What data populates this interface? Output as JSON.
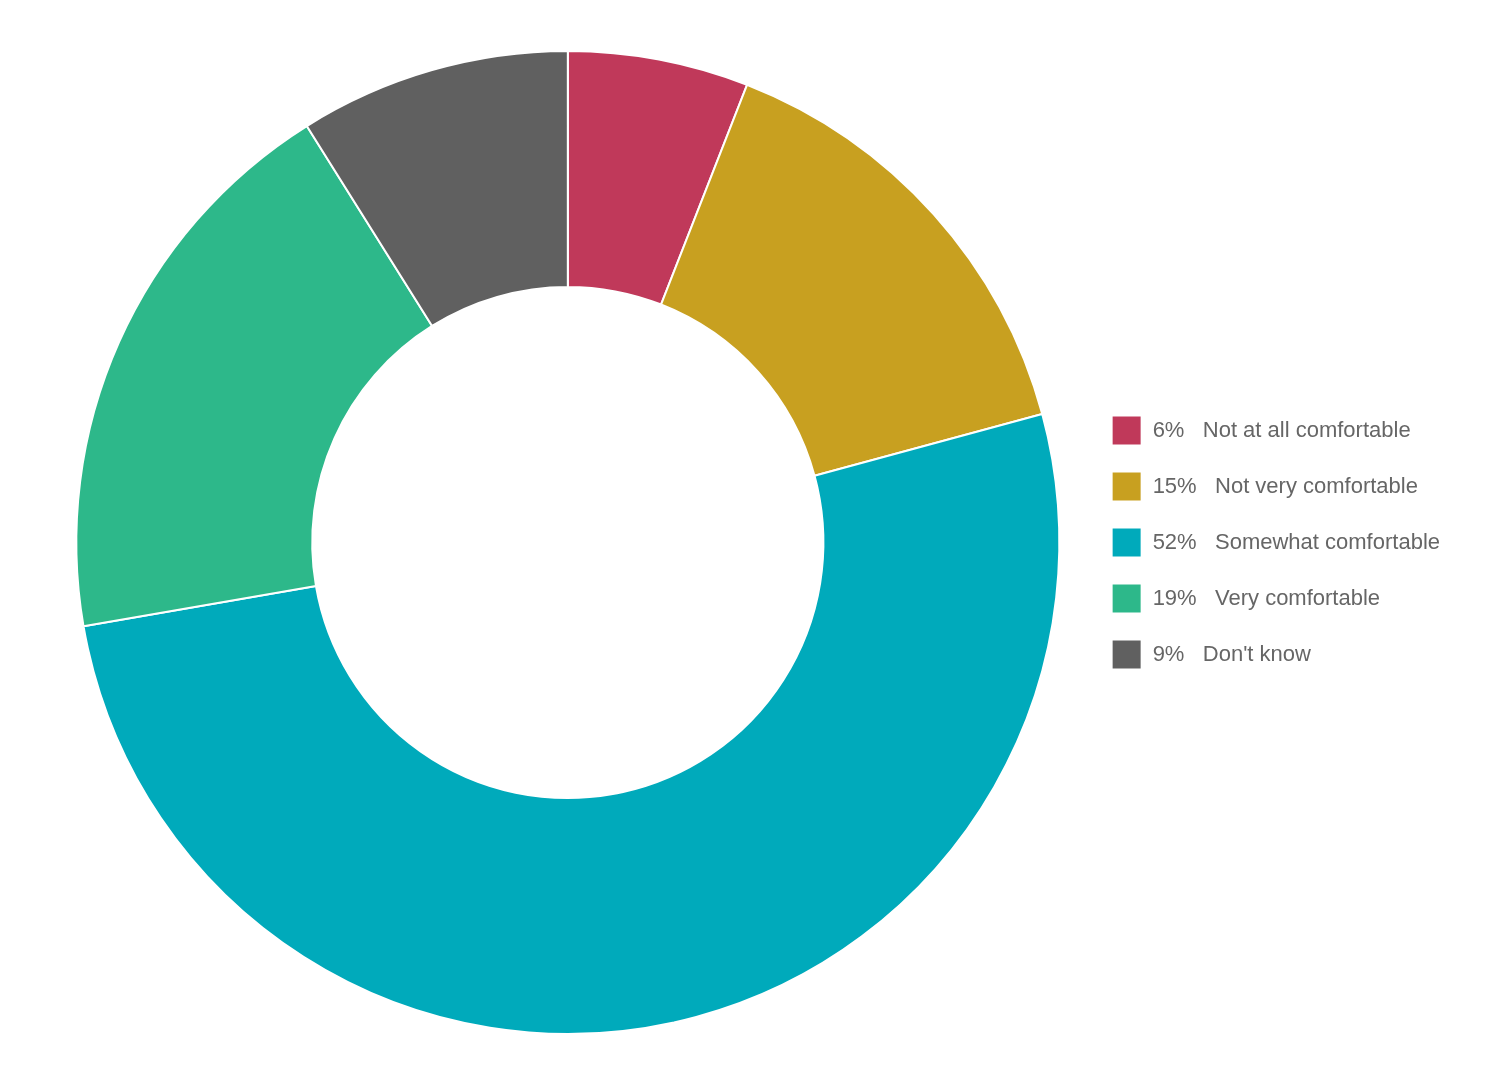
{
  "chart_data": {
    "type": "doughnut",
    "categories": [
      "6%   Not at all comfortable",
      "15%   Not very comfortable",
      "52%   Somewhat comfortable",
      "19%   Very comfortable",
      "9%   Don't know"
    ],
    "values": [
      6,
      15,
      52,
      19,
      9
    ],
    "colors": [
      "#c0395a",
      "#c8a020",
      "#00aabb",
      "#2db88a",
      "#606060"
    ],
    "legend": "right"
  }
}
